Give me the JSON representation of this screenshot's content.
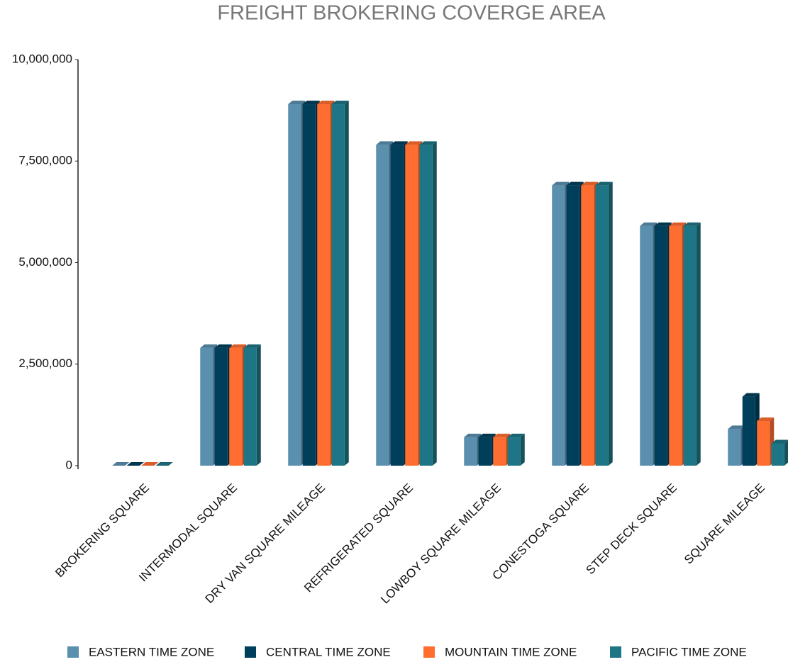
{
  "chart_data": {
    "type": "bar3d",
    "title": "FREIGHT BROKERING COVERGE AREA",
    "categories": [
      "BROKERING SQUARE",
      "INTERMODAL SQUARE",
      "DRY VAN SQUARE MILEAGE",
      "REFRIGERATED SQUARE",
      "LOWBOY SQUARE MILEAGE",
      "CONESTOGA SQUARE",
      "STEP DECK SQUARE",
      "SQUARE MILEAGE"
    ],
    "series": [
      {
        "name": "EASTERN TIME ZONE",
        "color": "#5a8fae",
        "values": [
          0,
          2900000,
          8900000,
          7900000,
          700000,
          6900000,
          5900000,
          900000
        ]
      },
      {
        "name": "CENTRAL TIME ZONE",
        "color": "#003f5c",
        "values": [
          0,
          2900000,
          8900000,
          7900000,
          700000,
          6900000,
          5900000,
          1700000
        ]
      },
      {
        "name": "MOUNTAIN TIME ZONE",
        "color": "#ff6e30",
        "values": [
          0,
          2900000,
          8900000,
          7900000,
          700000,
          6900000,
          5900000,
          1100000
        ]
      },
      {
        "name": "PACIFIC TIME ZONE",
        "color": "#1e7585",
        "values": [
          0,
          2900000,
          8900000,
          7900000,
          700000,
          6900000,
          5900000,
          550000
        ]
      }
    ],
    "ylim": [
      0,
      10000000
    ],
    "yticks": [
      0,
      {
        "value": 2500000,
        "label": "2,500,000"
      },
      {
        "value": 5000000,
        "label": "5,000,000"
      },
      {
        "value": 7500000,
        "label": "7,500,000"
      },
      {
        "value": 10000000,
        "label": "10,000,000"
      }
    ],
    "legend": "bottom"
  }
}
